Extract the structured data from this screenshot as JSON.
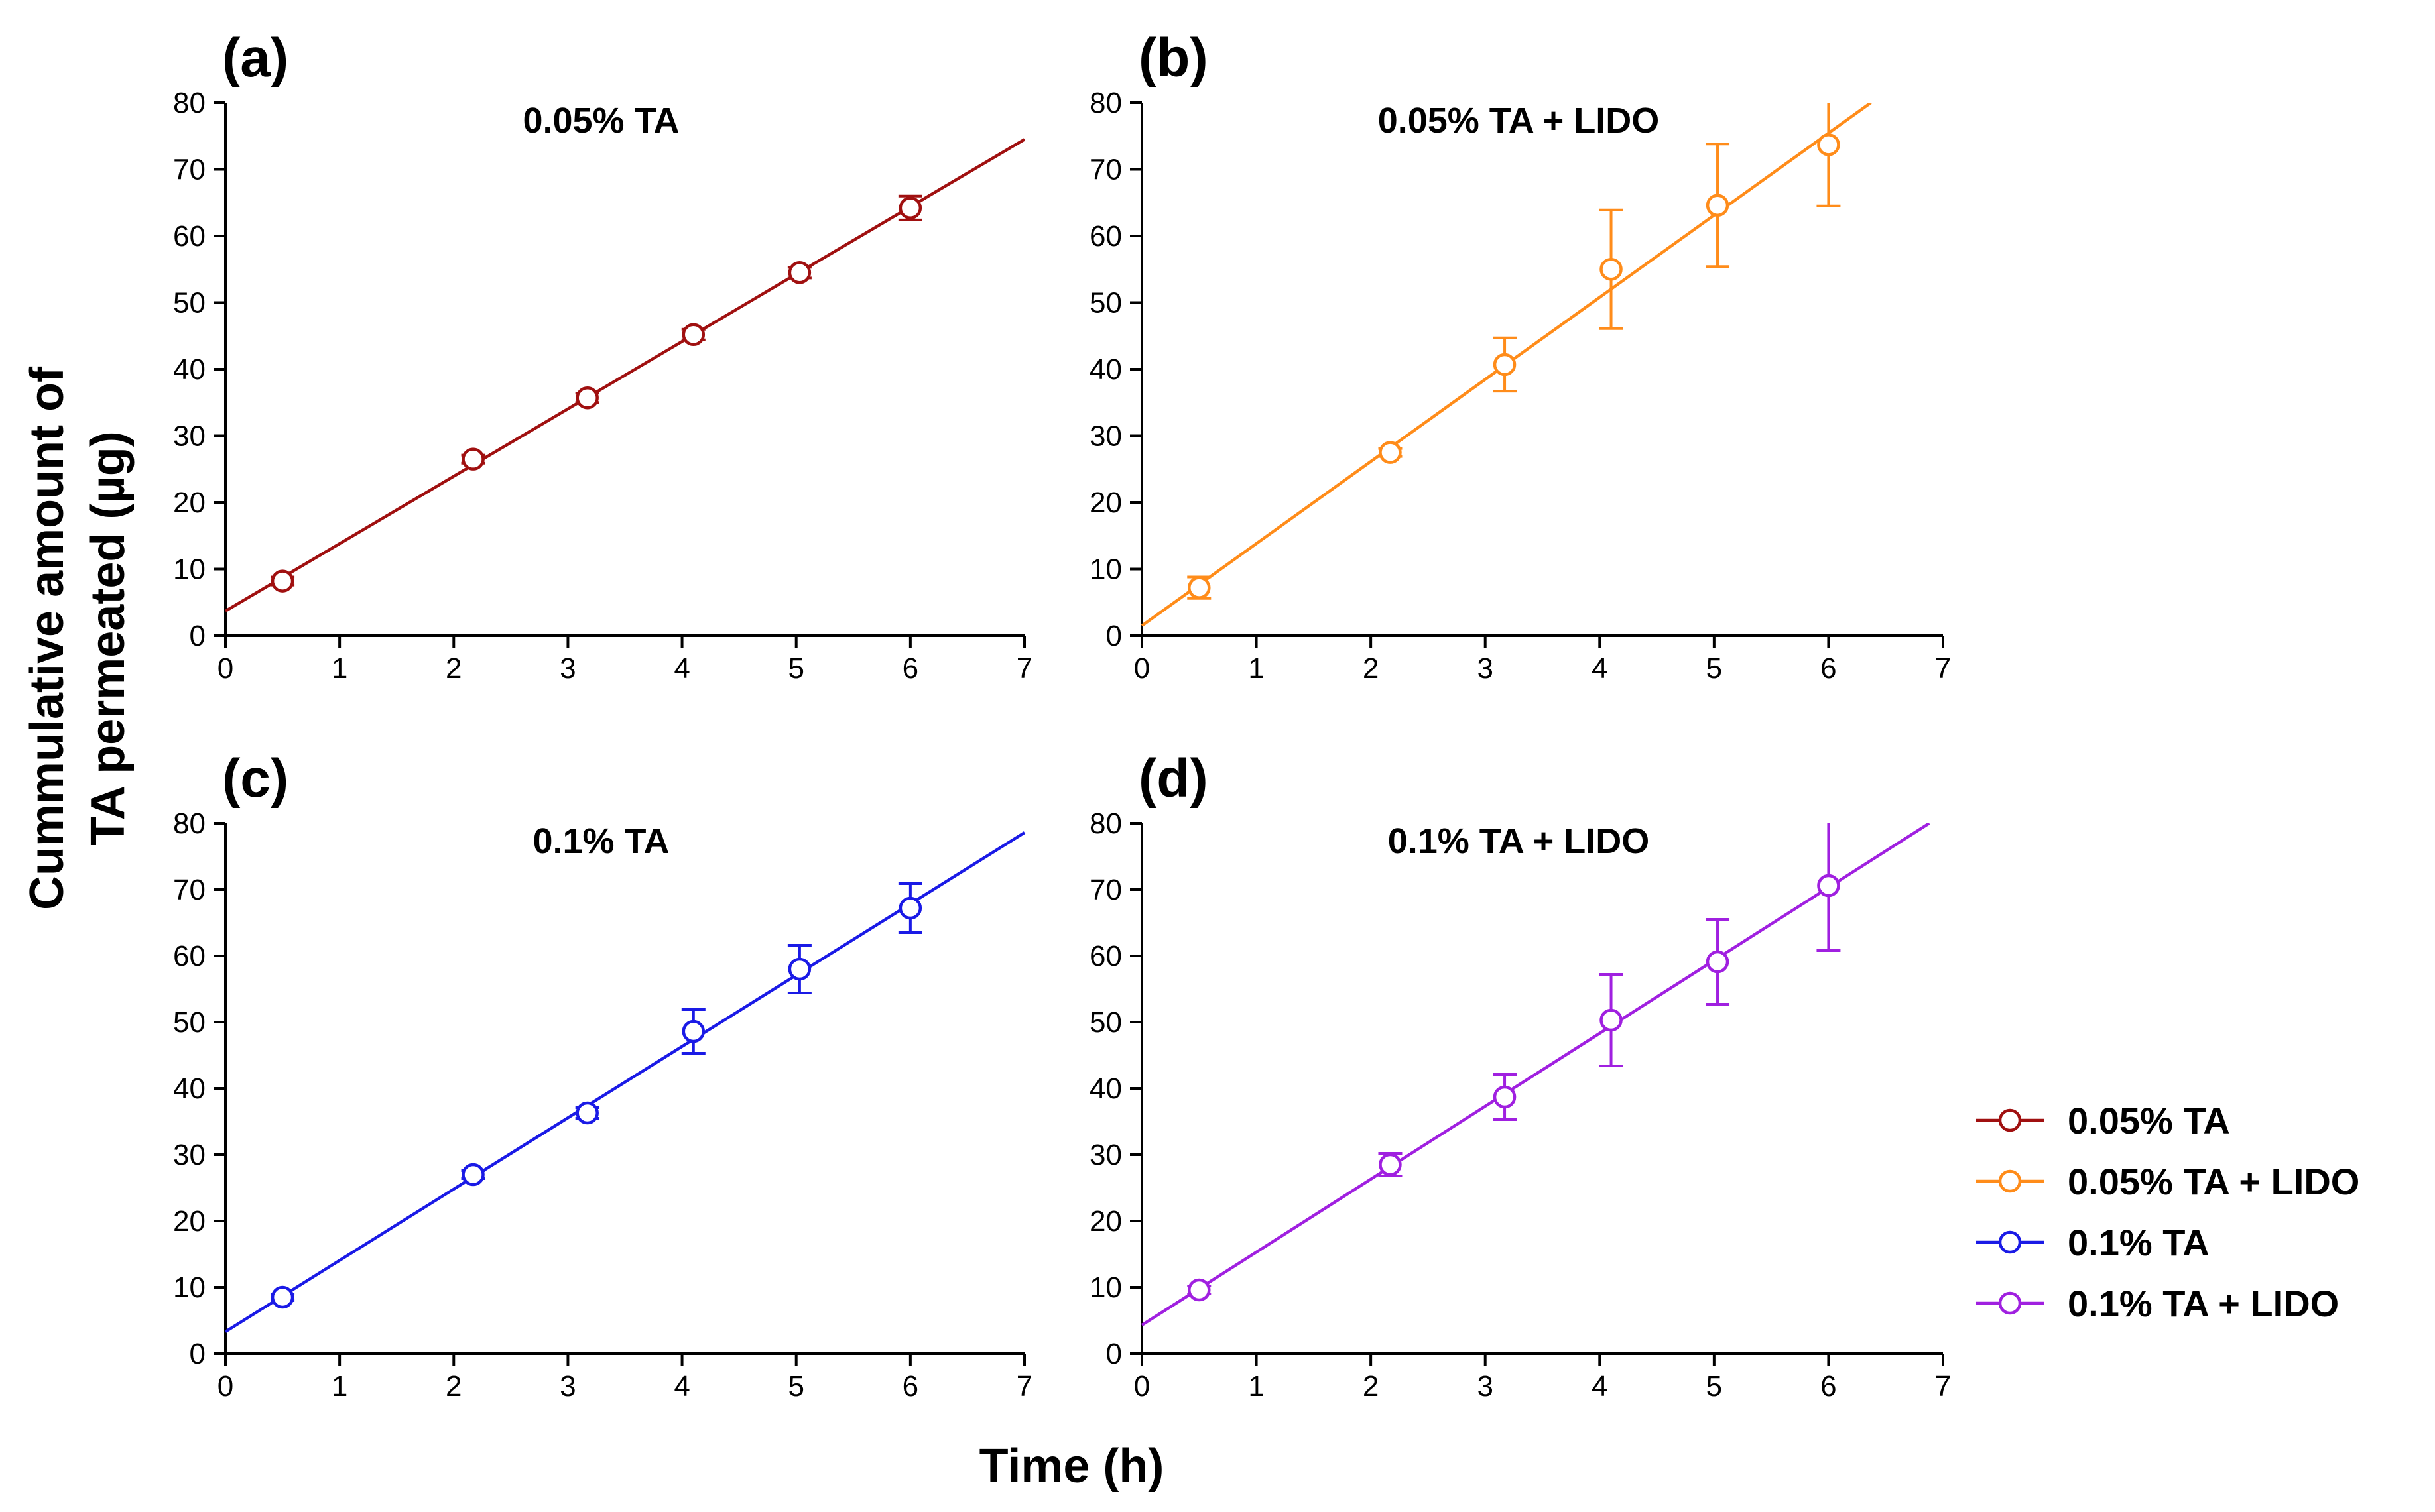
{
  "figure": {
    "y_axis_title_lines": [
      "Cummulative amount of",
      "TA permeated (µg)"
    ],
    "x_axis_title": "Time (h)"
  },
  "legend": {
    "entries": [
      {
        "label": "0.05% TA",
        "color": "#A01010"
      },
      {
        "label": "0.05% TA + LIDO",
        "color": "#FF8C1A"
      },
      {
        "label": "0.1% TA",
        "color": "#1A1AE6"
      },
      {
        "label": "0.1% TA + LIDO",
        "color": "#A020E0"
      }
    ]
  },
  "chart_data": [
    {
      "panel": "(a)",
      "type": "scatter",
      "title": "0.05% TA",
      "color": "#A01010",
      "xlim": [
        0,
        7
      ],
      "ylim": [
        0,
        80
      ],
      "xticks": [
        0,
        1,
        2,
        3,
        4,
        5,
        6,
        7
      ],
      "yticks": [
        0,
        10,
        20,
        30,
        40,
        50,
        60,
        70,
        80
      ],
      "x": [
        0.5,
        2.17,
        3.17,
        4.1,
        5.03,
        6.0
      ],
      "y": [
        8.2,
        26.5,
        35.7,
        45.2,
        54.5,
        64.2
      ],
      "error": [
        0.6,
        0.6,
        0.7,
        0.8,
        0.8,
        1.8
      ],
      "fit": {
        "x": [
          0,
          7
        ],
        "y": [
          3.7,
          74.5
        ]
      }
    },
    {
      "panel": "(b)",
      "type": "scatter",
      "title": "0.05% TA + LIDO",
      "color": "#FF8C1A",
      "xlim": [
        0,
        7
      ],
      "ylim": [
        0,
        80
      ],
      "xticks": [
        0,
        1,
        2,
        3,
        4,
        5,
        6,
        7
      ],
      "yticks": [
        0,
        10,
        20,
        30,
        40,
        50,
        60,
        70,
        80
      ],
      "x": [
        0.5,
        2.17,
        3.17,
        4.1,
        5.03,
        6.0
      ],
      "y": [
        7.2,
        27.5,
        40.7,
        55.0,
        64.6,
        73.7
      ],
      "error": [
        1.6,
        0.6,
        4.0,
        8.9,
        9.2,
        9.2
      ],
      "fit": {
        "x": [
          0,
          6.37
        ],
        "y": [
          1.5,
          80
        ]
      }
    },
    {
      "panel": "(c)",
      "type": "scatter",
      "title": "0.1% TA",
      "color": "#1A1AE6",
      "xlim": [
        0,
        7
      ],
      "ylim": [
        0,
        80
      ],
      "xticks": [
        0,
        1,
        2,
        3,
        4,
        5,
        6,
        7
      ],
      "yticks": [
        0,
        10,
        20,
        30,
        40,
        50,
        60,
        70,
        80
      ],
      "x": [
        0.5,
        2.17,
        3.17,
        4.1,
        5.03,
        6.0
      ],
      "y": [
        8.5,
        27.0,
        36.3,
        48.6,
        58.0,
        67.2
      ],
      "error": [
        0.5,
        0.6,
        0.8,
        3.3,
        3.6,
        3.7
      ],
      "fit": {
        "x": [
          0,
          7
        ],
        "y": [
          3.3,
          78.6
        ]
      }
    },
    {
      "panel": "(d)",
      "type": "scatter",
      "title": "0.1% TA + LIDO",
      "color": "#A020E0",
      "xlim": [
        0,
        7
      ],
      "ylim": [
        0,
        80
      ],
      "xticks": [
        0,
        1,
        2,
        3,
        4,
        5,
        6,
        7
      ],
      "yticks": [
        0,
        10,
        20,
        30,
        40,
        50,
        60,
        70,
        80
      ],
      "x": [
        0.5,
        2.17,
        3.17,
        4.1,
        5.03,
        6.0
      ],
      "y": [
        9.6,
        28.5,
        38.7,
        50.3,
        59.1,
        70.6
      ],
      "error": [
        0.6,
        1.7,
        3.4,
        6.9,
        6.4,
        9.8
      ],
      "fit": {
        "x": [
          0,
          6.88
        ],
        "y": [
          4.3,
          80
        ]
      }
    }
  ]
}
